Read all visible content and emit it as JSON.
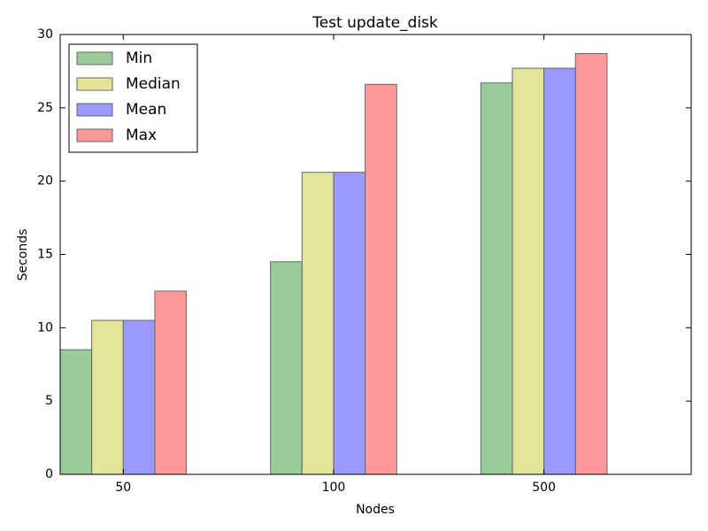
{
  "chart_data": {
    "type": "bar",
    "title": "Test update_disk",
    "x_label": "Nodes",
    "y_label": "Seconds",
    "categories": [
      "50",
      "100",
      "500"
    ],
    "series": [
      {
        "name": "Min",
        "color": "#99cc99",
        "values": [
          8.5,
          14.5,
          26.7
        ]
      },
      {
        "name": "Median",
        "color": "#e5e599",
        "values": [
          10.5,
          20.6,
          27.7
        ]
      },
      {
        "name": "Mean",
        "color": "#9999ff",
        "values": [
          10.5,
          20.6,
          27.7
        ]
      },
      {
        "name": "Max",
        "color": "#ff9999",
        "values": [
          12.5,
          26.6,
          28.7
        ]
      }
    ],
    "ylim": [
      0,
      30
    ],
    "yticks": [
      0,
      5,
      10,
      15,
      20,
      25,
      30
    ],
    "legend": "upper-left"
  }
}
